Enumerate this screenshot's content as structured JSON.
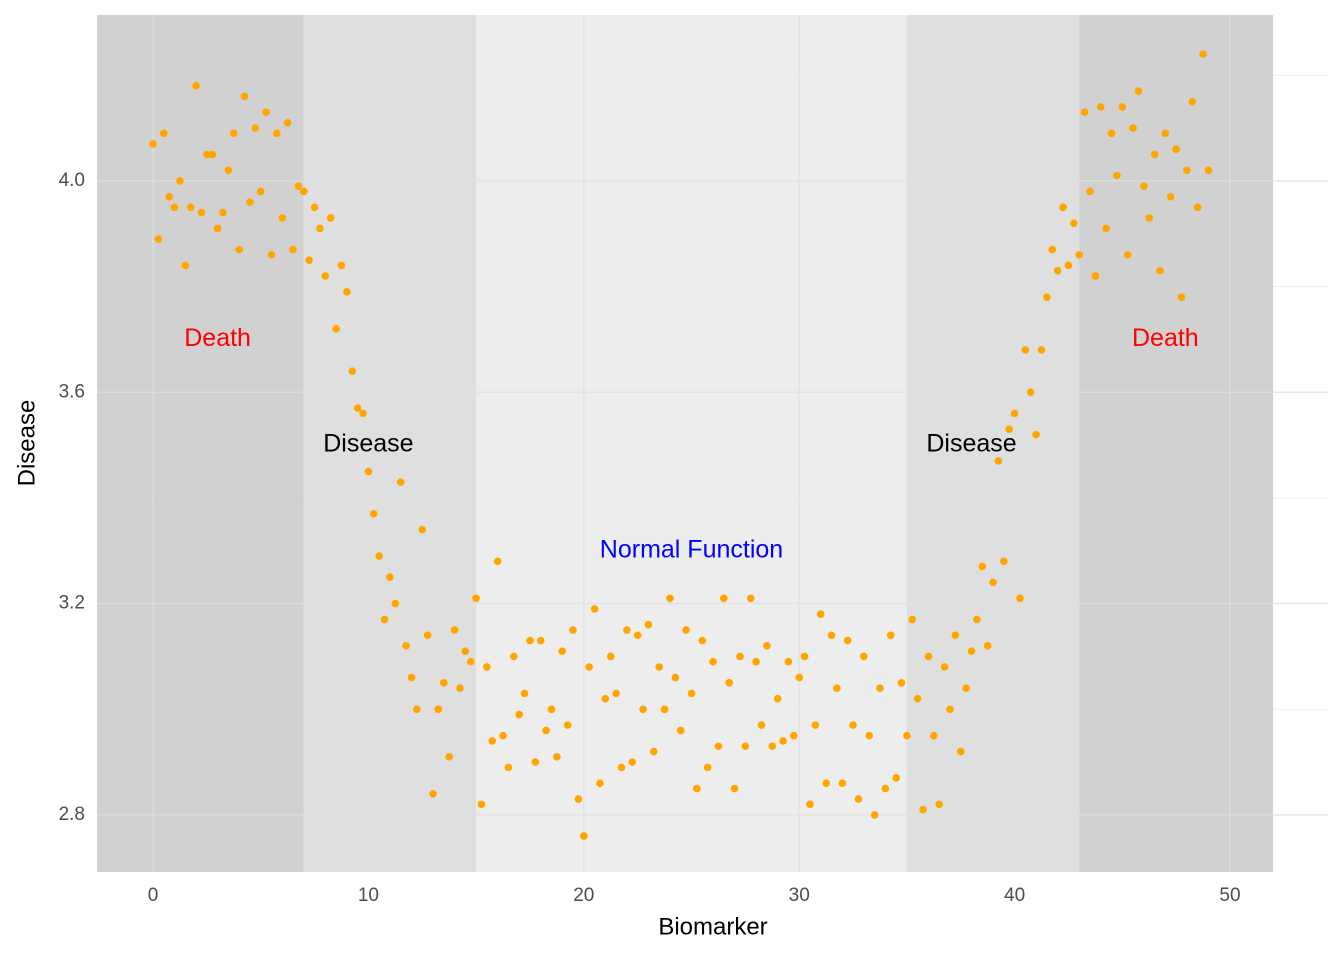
{
  "chart_data": {
    "type": "scatter",
    "x_label": "Biomarker",
    "y_label": "Disease",
    "color": "#ffa500",
    "xlim": [
      -2.6,
      54.55
    ],
    "ylim": [
      2.692,
      4.314
    ],
    "xticks": [
      0,
      10,
      20,
      30,
      40,
      50
    ],
    "yticks": [
      2.8,
      3.2,
      3.6,
      {
        "value": 4,
        "label": "4.0"
      }
    ],
    "x_minor_ticks": [
      5,
      15,
      25,
      35,
      45
    ],
    "y_minor_ticks": [
      3.0,
      3.4,
      3.8,
      4.2
    ],
    "grid": true,
    "regions": [
      {
        "xmin": -2.6,
        "xmax": 7,
        "fill": "#cccccc"
      },
      {
        "xmin": 7,
        "xmax": 15,
        "fill": "#dcdcdc"
      },
      {
        "xmin": 15,
        "xmax": 35,
        "fill": "#ebebeb"
      },
      {
        "xmin": 35,
        "xmax": 43,
        "fill": "#dcdcdc"
      },
      {
        "xmin": 43,
        "xmax": 52,
        "fill": "#cccccc"
      }
    ],
    "annotations": [
      {
        "text": "Death",
        "x": 3,
        "y": 3.7,
        "color": "#ff0000"
      },
      {
        "text": "Disease",
        "x": 10,
        "y": 3.5,
        "color": "#000000"
      },
      {
        "text": "Normal Function",
        "x": 25,
        "y": 3.3,
        "color": "#0000ff"
      },
      {
        "text": "Disease",
        "x": 38,
        "y": 3.5,
        "color": "#000000"
      },
      {
        "text": "Death",
        "x": 47,
        "y": 3.7,
        "color": "#ff0000"
      }
    ],
    "x": [
      0,
      0.25,
      0.5,
      0.75,
      1,
      1.25,
      1.5,
      1.75,
      2,
      2.25,
      2.5,
      2.75,
      3,
      3.25,
      3.5,
      3.75,
      4,
      4.25,
      4.5,
      4.75,
      5,
      5.25,
      5.5,
      5.75,
      6,
      6.25,
      6.5,
      6.75,
      7,
      7.25,
      7.5,
      7.75,
      8,
      8.25,
      8.5,
      8.75,
      9,
      9.25,
      9.5,
      9.75,
      10,
      10.25,
      10.5,
      10.75,
      11,
      11.25,
      11.5,
      11.75,
      12,
      12.25,
      12.5,
      12.75,
      13,
      13.25,
      13.5,
      13.75,
      14,
      14.25,
      14.5,
      14.75,
      15,
      15.25,
      15.5,
      15.75,
      16,
      16.25,
      16.5,
      16.75,
      17,
      17.25,
      17.5,
      17.75,
      18,
      18.25,
      18.5,
      18.75,
      19,
      19.25,
      19.5,
      19.75,
      20,
      20.25,
      20.5,
      20.75,
      21,
      21.25,
      21.5,
      21.75,
      22,
      22.25,
      22.5,
      22.75,
      23,
      23.25,
      23.5,
      23.75,
      24,
      24.25,
      24.5,
      24.75,
      25,
      25.25,
      25.5,
      25.75,
      26,
      26.25,
      26.5,
      26.75,
      27,
      27.25,
      27.5,
      27.75,
      28,
      28.25,
      28.5,
      28.75,
      29,
      29.25,
      29.5,
      29.75,
      30,
      30.25,
      30.5,
      30.75,
      31,
      31.25,
      31.5,
      31.75,
      32,
      32.25,
      32.5,
      32.75,
      33,
      33.25,
      33.5,
      33.75,
      34,
      34.25,
      34.5,
      34.75,
      35,
      35.25,
      35.5,
      35.75,
      36,
      36.25,
      36.5,
      36.75,
      37,
      37.25,
      37.5,
      37.75,
      38,
      38.25,
      38.5,
      38.75,
      39,
      39.25,
      39.5,
      39.75,
      40,
      40.25,
      40.5,
      40.75,
      41,
      41.25,
      41.5,
      41.75,
      42,
      42.25,
      42.5,
      42.75,
      43,
      43.25,
      43.5,
      43.75,
      44,
      44.25,
      44.5,
      44.75,
      45,
      45.25,
      45.5,
      45.75,
      46,
      46.25,
      46.5,
      46.75,
      47,
      47.25,
      47.5,
      47.75,
      48,
      48.25,
      48.5,
      48.75,
      49
    ],
    "values": [
      4.07,
      3.89,
      4.09,
      3.97,
      3.95,
      4.0,
      3.84,
      3.95,
      4.18,
      3.94,
      4.05,
      4.05,
      3.91,
      3.94,
      4.02,
      4.09,
      3.87,
      4.16,
      3.96,
      4.1,
      3.98,
      4.13,
      3.86,
      4.09,
      3.93,
      4.11,
      3.87,
      3.99,
      3.98,
      3.85,
      3.95,
      3.91,
      3.82,
      3.93,
      3.72,
      3.84,
      3.79,
      3.64,
      3.57,
      3.56,
      3.45,
      3.37,
      3.29,
      3.17,
      3.25,
      3.2,
      3.43,
      3.12,
      3.06,
      3.0,
      3.34,
      3.14,
      2.84,
      3.0,
      3.05,
      2.91,
      3.15,
      3.04,
      3.11,
      3.09,
      3.21,
      2.82,
      3.08,
      2.94,
      3.28,
      2.95,
      2.89,
      3.1,
      2.99,
      3.03,
      3.13,
      2.9,
      3.13,
      2.96,
      3.0,
      2.91,
      3.11,
      2.97,
      3.15,
      2.83,
      2.76,
      3.08,
      3.19,
      2.86,
      3.02,
      3.1,
      3.03,
      2.89,
      3.15,
      2.9,
      3.14,
      3.0,
      3.16,
      2.92,
      3.08,
      3.0,
      3.21,
      3.06,
      2.96,
      3.15,
      3.03,
      2.85,
      3.13,
      2.89,
      3.09,
      2.93,
      3.21,
      3.05,
      2.85,
      3.1,
      2.93,
      3.21,
      3.09,
      2.97,
      3.12,
      2.93,
      3.02,
      2.94,
      3.09,
      2.95,
      3.06,
      3.1,
      2.82,
      2.97,
      3.18,
      2.86,
      3.14,
      3.04,
      2.86,
      3.13,
      2.97,
      2.83,
      3.1,
      2.95,
      2.8,
      3.04,
      2.85,
      3.14,
      2.87,
      3.05,
      2.95,
      3.17,
      3.02,
      2.81,
      3.1,
      2.95,
      2.82,
      3.08,
      3.0,
      3.14,
      2.92,
      3.04,
      3.11,
      3.17,
      3.27,
      3.12,
      3.24,
      3.47,
      3.28,
      3.53,
      3.56,
      3.21,
      3.68,
      3.6,
      3.52,
      3.68,
      3.78,
      3.87,
      3.83,
      3.95,
      3.84,
      3.92,
      3.86,
      4.13,
      3.98,
      3.82,
      4.14,
      3.91,
      4.09,
      4.01,
      4.14,
      3.86,
      4.1,
      4.17,
      3.99,
      3.93,
      4.05,
      3.83,
      4.09,
      3.97,
      4.06,
      3.78,
      4.02,
      4.15,
      3.95,
      4.24,
      4.02
    ]
  }
}
